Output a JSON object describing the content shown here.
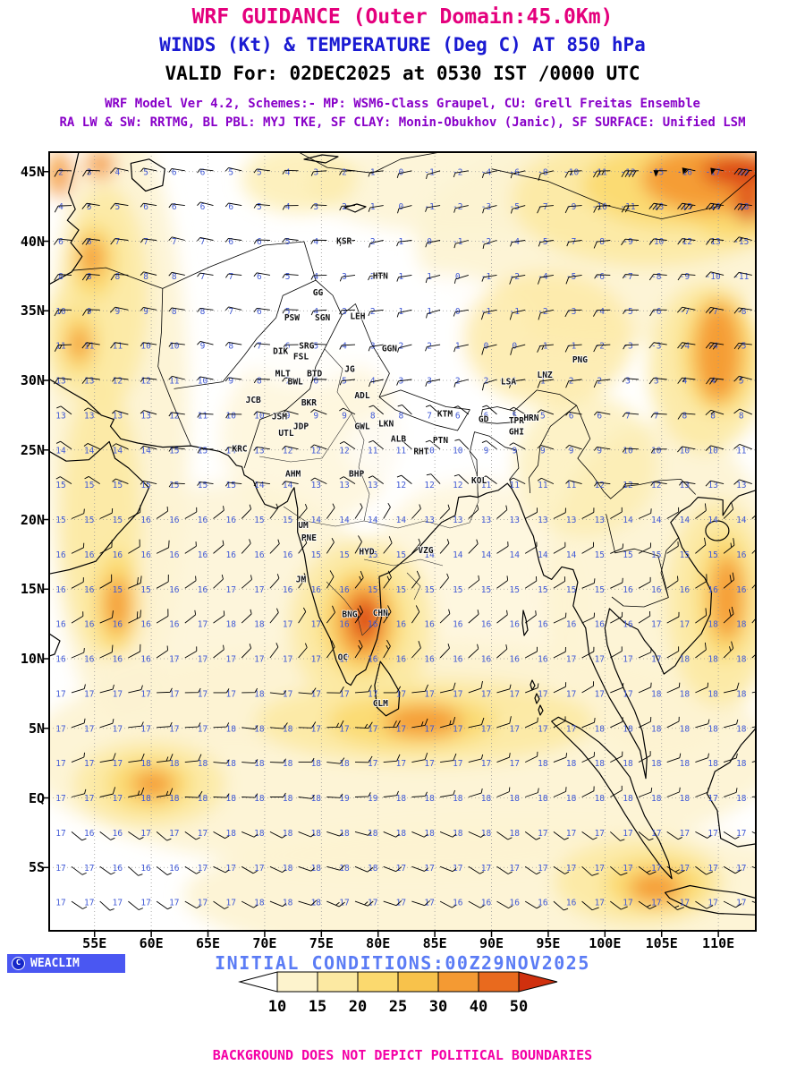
{
  "colors": {
    "title_magenta": "#e4007d",
    "subtitle_blue": "#1a1ad2",
    "scheme_purple": "#8800c8",
    "init_blue": "#5b7cf5",
    "logo_blue": "#4a57f2",
    "disclaimer_magenta": "#f400a6",
    "temp_blue": "#4059d6",
    "shade_scale": [
      "#ffffff",
      "#fdf3cd",
      "#fce9a2",
      "#fbd96e",
      "#f8c24b",
      "#f49a33",
      "#e96a1e",
      "#d0300e"
    ]
  },
  "header": {
    "title": "WRF GUIDANCE (Outer Domain:45.0Km)",
    "subtitle": "WINDS (Kt) & TEMPERATURE (Deg C) AT 850 hPa",
    "valid": "VALID For: 02DEC2025 at 0530 IST /0000 UTC",
    "scheme_line1": "WRF Model Ver 4.2, Schemes:- MP: WSM6-Class Graupel, CU: Grell Freitas Ensemble",
    "scheme_line2": "RA LW & SW: RRTMG, BL PBL: MYJ TKE, SF CLAY: Monin-Obukhov (Janic), SF SURFACE: Unified LSM"
  },
  "footer": {
    "logo_text": "WEACLIM",
    "logo_symbol": "C",
    "initial_conditions": "INITIAL CONDITIONS:00Z29NOV2025",
    "disclaimer": "BACKGROUND DOES NOT DEPICT POLITICAL BOUNDARIES"
  },
  "colorbar": {
    "labels": [
      "10",
      "15",
      "20",
      "25",
      "30",
      "40",
      "50"
    ]
  },
  "map": {
    "lat_ticks": [
      {
        "label": "45N",
        "lat": 45
      },
      {
        "label": "40N",
        "lat": 40
      },
      {
        "label": "35N",
        "lat": 35
      },
      {
        "label": "30N",
        "lat": 30
      },
      {
        "label": "25N",
        "lat": 25
      },
      {
        "label": "20N",
        "lat": 20
      },
      {
        "label": "15N",
        "lat": 15
      },
      {
        "label": "10N",
        "lat": 10
      },
      {
        "label": "5N",
        "lat": 5
      },
      {
        "label": "EQ",
        "lat": 0
      },
      {
        "label": "5S",
        "lat": -5
      }
    ],
    "lon_ticks": [
      {
        "label": "55E",
        "lon": 55
      },
      {
        "label": "60E",
        "lon": 60
      },
      {
        "label": "65E",
        "lon": 65
      },
      {
        "label": "70E",
        "lon": 70
      },
      {
        "label": "75E",
        "lon": 75
      },
      {
        "label": "80E",
        "lon": 80
      },
      {
        "label": "85E",
        "lon": 85
      },
      {
        "label": "90E",
        "lon": 90
      },
      {
        "label": "95E",
        "lon": 95
      },
      {
        "label": "100E",
        "lon": 100
      },
      {
        "label": "105E",
        "lon": 105
      },
      {
        "label": "110E",
        "lon": 110
      }
    ],
    "stations": [
      {
        "label": "KSR",
        "lon": 77.0,
        "lat": 39.8
      },
      {
        "label": "HTN",
        "lon": 80.2,
        "lat": 37.3
      },
      {
        "label": "GG",
        "lon": 74.7,
        "lat": 36.1
      },
      {
        "label": "PSW",
        "lon": 72.4,
        "lat": 34.3
      },
      {
        "label": "SGN",
        "lon": 75.1,
        "lat": 34.3
      },
      {
        "label": "LEH",
        "lon": 78.2,
        "lat": 34.4
      },
      {
        "label": "DIK",
        "lon": 71.4,
        "lat": 31.9
      },
      {
        "label": "SRG",
        "lon": 73.7,
        "lat": 32.3
      },
      {
        "label": "FSL",
        "lon": 73.2,
        "lat": 31.5
      },
      {
        "label": "GGN",
        "lon": 81.0,
        "lat": 32.1
      },
      {
        "label": "BWL",
        "lon": 72.7,
        "lat": 29.7
      },
      {
        "label": "MLT",
        "lon": 71.6,
        "lat": 30.3
      },
      {
        "label": "BTD",
        "lon": 74.4,
        "lat": 30.3
      },
      {
        "label": "JG",
        "lon": 77.5,
        "lat": 30.6
      },
      {
        "label": "PNG",
        "lon": 97.8,
        "lat": 31.3
      },
      {
        "label": "LSA",
        "lon": 91.5,
        "lat": 29.7
      },
      {
        "label": "LNZ",
        "lon": 94.7,
        "lat": 30.2
      },
      {
        "label": "JCB",
        "lon": 69.0,
        "lat": 28.4
      },
      {
        "label": "BKR",
        "lon": 73.9,
        "lat": 28.2
      },
      {
        "label": "ADL",
        "lon": 78.6,
        "lat": 28.7
      },
      {
        "label": "JSM",
        "lon": 71.3,
        "lat": 27.2
      },
      {
        "label": "UTL",
        "lon": 71.9,
        "lat": 26.0
      },
      {
        "label": "JDP",
        "lon": 73.2,
        "lat": 26.5
      },
      {
        "label": "GWL",
        "lon": 78.6,
        "lat": 26.5
      },
      {
        "label": "LKN",
        "lon": 80.7,
        "lat": 26.7
      },
      {
        "label": "KTM",
        "lon": 85.9,
        "lat": 27.4
      },
      {
        "label": "GD",
        "lon": 89.3,
        "lat": 27.0
      },
      {
        "label": "TPR",
        "lon": 92.2,
        "lat": 26.9
      },
      {
        "label": "HRN",
        "lon": 93.5,
        "lat": 27.1
      },
      {
        "label": "GHI",
        "lon": 92.2,
        "lat": 26.1
      },
      {
        "label": "KRC",
        "lon": 67.8,
        "lat": 24.9
      },
      {
        "label": "PTN",
        "lon": 85.5,
        "lat": 25.5
      },
      {
        "label": "RHT",
        "lon": 83.8,
        "lat": 24.7
      },
      {
        "label": "ALB",
        "lon": 81.8,
        "lat": 25.6
      },
      {
        "label": "AHM",
        "lon": 72.5,
        "lat": 23.1
      },
      {
        "label": "BHP",
        "lon": 78.1,
        "lat": 23.1
      },
      {
        "label": "KOL",
        "lon": 88.9,
        "lat": 22.6
      },
      {
        "label": "UM",
        "lon": 73.4,
        "lat": 19.4
      },
      {
        "label": "PNE",
        "lon": 73.9,
        "lat": 18.5
      },
      {
        "label": "HYD",
        "lon": 79.0,
        "lat": 17.5
      },
      {
        "label": "VZG",
        "lon": 84.2,
        "lat": 17.6
      },
      {
        "label": "JM",
        "lon": 73.2,
        "lat": 15.5
      },
      {
        "label": "BNG",
        "lon": 77.5,
        "lat": 13.0
      },
      {
        "label": "CHN",
        "lon": 80.2,
        "lat": 13.1
      },
      {
        "label": "OC",
        "lon": 76.9,
        "lat": 9.9
      },
      {
        "label": "CLM",
        "lon": 80.2,
        "lat": 6.6
      }
    ]
  },
  "chart_data": {
    "type": "heatmap",
    "title": "WRF GUIDANCE (Outer Domain:45.0Km)",
    "subtitle": "WINDS (Kt) & TEMPERATURE (Deg C) AT 850 hPa",
    "valid_time": "02DEC2025 0530 IST / 0000 UTC",
    "initial_conditions": "00Z29NOV2025",
    "level_hPa": 850,
    "domain": {
      "lon_range": [
        51,
        113.3
      ],
      "lat_range": [
        -9.4,
        46.4
      ],
      "grid_resolution_km": 45
    },
    "shading_variable": "wind speed (Kt)",
    "shading_levels": [
      10,
      15,
      20,
      25,
      30,
      40,
      50
    ],
    "overlay_variable": "temperature (Deg C)",
    "temperature_grid": {
      "lons": [
        52.5,
        55,
        57.5,
        60,
        62.5,
        65,
        67.5,
        70,
        72.5,
        75,
        77.5,
        80,
        82.5,
        85,
        87.5,
        90,
        92.5,
        95,
        97.5,
        100,
        102.5,
        105,
        107.5,
        110,
        112.5
      ],
      "lats": [
        45,
        42.5,
        40,
        37.5,
        35,
        32.5,
        30,
        27.5,
        25,
        22.5,
        20,
        17.5,
        15,
        12.5,
        10,
        7.5,
        5,
        2.5,
        0,
        -2.5,
        -5,
        -7.5
      ],
      "values": [
        [
          2,
          3,
          4,
          5,
          6,
          6,
          5,
          5,
          4,
          3,
          2,
          1,
          0,
          -1,
          -2,
          -4,
          -6,
          -8,
          -10,
          -11,
          -13,
          -15,
          -16,
          -17,
          -22
        ],
        [
          4,
          5,
          5,
          6,
          6,
          6,
          6,
          5,
          4,
          3,
          2,
          1,
          0,
          -1,
          -2,
          -3,
          -5,
          -7,
          -9,
          -10,
          -11,
          -13,
          -15,
          -16,
          -18
        ],
        [
          6,
          6,
          7,
          7,
          7,
          7,
          6,
          6,
          5,
          4,
          3,
          2,
          1,
          0,
          -1,
          -2,
          -4,
          -5,
          -7,
          -8,
          -9,
          -10,
          -12,
          -13,
          -15
        ],
        [
          8,
          8,
          8,
          8,
          8,
          7,
          7,
          6,
          5,
          4,
          3,
          2,
          1,
          1,
          0,
          -1,
          -2,
          -4,
          -5,
          -6,
          -7,
          -8,
          -9,
          -10,
          -11
        ],
        [
          10,
          9,
          9,
          9,
          8,
          8,
          7,
          6,
          5,
          4,
          3,
          2,
          1,
          1,
          0,
          -1,
          -1,
          -2,
          -3,
          -4,
          -5,
          -6,
          -7,
          -7,
          -8
        ],
        [
          11,
          11,
          11,
          10,
          10,
          9,
          8,
          7,
          6,
          5,
          4,
          3,
          2,
          2,
          1,
          0,
          0,
          -1,
          -1,
          -2,
          -3,
          -3,
          -4,
          -4,
          -5
        ],
        [
          13,
          13,
          12,
          12,
          11,
          10,
          9,
          8,
          7,
          6,
          5,
          4,
          3,
          3,
          2,
          2,
          1,
          1,
          2,
          2,
          3,
          3,
          4,
          4,
          5
        ],
        [
          13,
          13,
          13,
          13,
          12,
          11,
          10,
          10,
          9,
          9,
          9,
          8,
          8,
          7,
          6,
          6,
          5,
          5,
          6,
          6,
          7,
          7,
          8,
          8,
          8
        ],
        [
          14,
          14,
          14,
          14,
          15,
          15,
          14,
          13,
          12,
          12,
          12,
          11,
          11,
          10,
          10,
          9,
          9,
          9,
          9,
          9,
          10,
          10,
          10,
          10,
          11
        ],
        [
          15,
          15,
          15,
          15,
          15,
          15,
          15,
          14,
          14,
          13,
          13,
          13,
          12,
          12,
          12,
          11,
          11,
          11,
          11,
          12,
          12,
          12,
          13,
          13,
          13
        ],
        [
          15,
          15,
          15,
          16,
          16,
          16,
          16,
          15,
          15,
          14,
          14,
          14,
          14,
          13,
          13,
          13,
          13,
          13,
          13,
          13,
          14,
          14,
          14,
          14,
          14
        ],
        [
          16,
          16,
          16,
          16,
          16,
          16,
          16,
          16,
          16,
          15,
          15,
          15,
          15,
          14,
          14,
          14,
          14,
          14,
          14,
          15,
          15,
          15,
          15,
          15,
          16
        ],
        [
          16,
          16,
          15,
          15,
          16,
          16,
          17,
          17,
          16,
          16,
          16,
          15,
          15,
          15,
          15,
          15,
          15,
          15,
          15,
          15,
          16,
          16,
          16,
          16,
          16
        ],
        [
          16,
          16,
          16,
          16,
          16,
          17,
          18,
          18,
          17,
          17,
          16,
          16,
          16,
          16,
          16,
          16,
          16,
          16,
          16,
          16,
          16,
          17,
          17,
          18,
          18
        ],
        [
          16,
          16,
          16,
          16,
          17,
          17,
          17,
          17,
          17,
          17,
          17,
          16,
          16,
          16,
          16,
          16,
          16,
          16,
          17,
          17,
          17,
          17,
          18,
          18,
          18
        ],
        [
          17,
          17,
          17,
          17,
          17,
          17,
          17,
          18,
          17,
          17,
          17,
          17,
          17,
          17,
          17,
          17,
          17,
          17,
          17,
          17,
          17,
          18,
          18,
          18,
          18
        ],
        [
          17,
          17,
          17,
          17,
          17,
          17,
          18,
          18,
          18,
          17,
          17,
          17,
          17,
          17,
          17,
          17,
          17,
          17,
          17,
          18,
          18,
          18,
          18,
          18,
          18
        ],
        [
          17,
          17,
          17,
          18,
          18,
          18,
          18,
          18,
          18,
          18,
          18,
          17,
          17,
          17,
          17,
          17,
          17,
          18,
          18,
          18,
          18,
          18,
          18,
          18,
          18
        ],
        [
          17,
          17,
          17,
          18,
          18,
          18,
          18,
          18,
          18,
          18,
          19,
          19,
          18,
          18,
          18,
          18,
          18,
          18,
          18,
          18,
          18,
          18,
          18,
          17,
          18
        ],
        [
          17,
          16,
          16,
          17,
          17,
          17,
          18,
          18,
          18,
          18,
          18,
          18,
          18,
          18,
          18,
          18,
          18,
          17,
          17,
          17,
          17,
          17,
          17,
          17,
          17
        ],
        [
          17,
          17,
          16,
          16,
          16,
          17,
          17,
          17,
          18,
          18,
          18,
          18,
          17,
          17,
          17,
          17,
          17,
          17,
          17,
          17,
          17,
          17,
          17,
          17,
          17
        ],
        [
          17,
          17,
          17,
          17,
          17,
          17,
          17,
          18,
          18,
          18,
          17,
          17,
          17,
          17,
          16,
          16,
          16,
          16,
          16,
          17,
          17,
          17,
          17,
          17,
          17
        ]
      ]
    },
    "wind_field": {
      "base_kt": 7,
      "regimes": [
        {
          "lats": "30N-47N",
          "dir_from": "W"
        },
        {
          "lats": "22N-30N",
          "dir_from": "WNW light"
        },
        {
          "lats": "0-22N",
          "dir_from": "NE-E"
        },
        {
          "lats": "south of EQ",
          "dir_from": "E-SE"
        }
      ],
      "maxima": [
        {
          "lon": 109.5,
          "lat": 44.5,
          "kt": 40,
          "rlon": 6,
          "rlat": 3.5
        },
        {
          "lon": 103,
          "lat": 45.5,
          "kt": 25,
          "rlon": 5,
          "rlat": 2.5
        },
        {
          "lon": 110,
          "lat": 32,
          "kt": 22,
          "rlon": 3,
          "rlat": 4
        },
        {
          "lon": 78.8,
          "lat": 12.7,
          "kt": 28,
          "rlon": 2.5,
          "rlat": 2.5
        },
        {
          "lon": 57,
          "lat": 14,
          "kt": 14,
          "rlon": 2,
          "rlat": 3.5
        },
        {
          "lon": 55,
          "lat": 38.5,
          "kt": 12,
          "rlon": 2.5,
          "rlat": 4
        },
        {
          "lon": 53.5,
          "lat": 32.8,
          "kt": 11,
          "rlon": 2,
          "rlat": 3
        },
        {
          "lon": 80,
          "lat": 5.5,
          "kt": 12,
          "rlon": 6,
          "rlat": 2
        },
        {
          "lon": 59,
          "lat": 1,
          "kt": 11,
          "rlon": 3,
          "rlat": 2
        },
        {
          "lon": 110.8,
          "lat": 14.5,
          "kt": 15,
          "rlon": 2.5,
          "rlat": 5
        },
        {
          "lon": 104,
          "lat": -6.4,
          "kt": 13,
          "rlon": 4,
          "rlat": 2
        },
        {
          "lon": 77,
          "lat": -7.6,
          "kt": 8,
          "rlon": 4,
          "rlat": 2
        },
        {
          "lon": 95,
          "lat": 33,
          "kt": 8,
          "rlon": 4,
          "rlat": 3
        },
        {
          "lon": 55.6,
          "lat": 44.8,
          "kt": 10,
          "rlon": 2,
          "rlat": 2.5
        }
      ]
    }
  }
}
